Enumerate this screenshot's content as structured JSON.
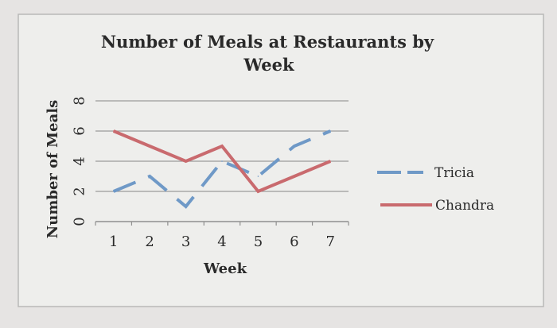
{
  "chart_data": {
    "type": "line",
    "title_line1": "Number of Meals at Restaurants by",
    "title_line2": "Week",
    "xlabel": "Week",
    "ylabel": "Number of Meals",
    "x": [
      1,
      2,
      3,
      4,
      5,
      6,
      7
    ],
    "x_tick_labels": [
      "1",
      "2",
      "3",
      "4",
      "5",
      "6",
      "7"
    ],
    "y_tick_labels": [
      "0",
      "2",
      "4",
      "6",
      "8"
    ],
    "ylim": [
      0,
      8
    ],
    "grid": true,
    "legend_position": "right",
    "series": [
      {
        "name": "Tricia",
        "values": [
          2,
          3,
          1,
          4,
          3,
          5,
          6
        ],
        "color": "#6f99c7",
        "dash": true
      },
      {
        "name": "Chandra",
        "values": [
          6,
          5,
          4,
          5,
          2,
          3,
          4
        ],
        "color": "#c96a6e",
        "dash": false
      }
    ]
  }
}
